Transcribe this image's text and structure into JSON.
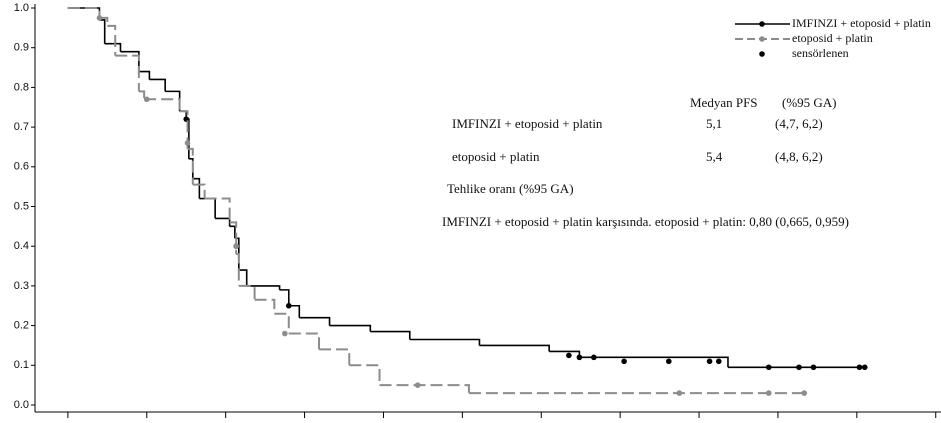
{
  "chart_data": {
    "type": "km",
    "xlim": [
      -1.25,
      33.2
    ],
    "xticks": [
      0,
      3,
      6,
      9,
      12,
      15,
      18,
      21,
      24,
      27,
      30,
      33
    ],
    "ylim": [
      0,
      1
    ],
    "yticks": [
      {
        "value": 0,
        "label": "0.0"
      },
      0.1,
      0.2,
      0.3,
      0.4,
      0.5,
      0.6,
      0.7,
      0.8,
      0.9,
      {
        "value": 1,
        "label": "1.0"
      }
    ],
    "series": [
      {
        "name": "IMFINZI + etoposid + platin",
        "color": "#000000",
        "dashed": false,
        "x": [
          0,
          1.2,
          1.4,
          2.0,
          2.7,
          3.1,
          3.7,
          4.25,
          4.5,
          4.6,
          4.75,
          5.0,
          5.6,
          6.15,
          6.35,
          6.5,
          6.8,
          8.05,
          8.4,
          8.8,
          9.95,
          11.5,
          13,
          15.65,
          18.3,
          19.45,
          25.1,
          30.4
        ],
        "values": [
          1.0,
          0.97,
          0.91,
          0.89,
          0.84,
          0.82,
          0.79,
          0.74,
          0.72,
          0.62,
          0.57,
          0.52,
          0.47,
          0.45,
          0.42,
          0.34,
          0.3,
          0.29,
          0.25,
          0.22,
          0.2,
          0.185,
          0.165,
          0.15,
          0.135,
          0.12,
          0.095,
          0.095
        ],
        "censor_x": [
          4.5,
          6.4,
          8.4,
          19.05,
          19.45,
          20,
          21.15,
          22.85,
          24.4,
          24.75,
          26.65,
          27.8,
          28.35,
          30.1,
          30.3
        ],
        "censor_values": [
          0.72,
          0.4,
          0.25,
          0.125,
          0.12,
          0.12,
          0.11,
          0.11,
          0.11,
          0.11,
          0.095,
          0.095,
          0.095,
          0.095,
          0.095
        ]
      },
      {
        "name": "etoposid + platin",
        "color": "#8c8c8c",
        "dashed": true,
        "x": [
          0,
          1.2,
          1.5,
          1.8,
          2.7,
          2.9,
          4.25,
          4.55,
          4.75,
          5.2,
          6.15,
          6.4,
          6.5,
          7.1,
          7.85,
          8.4,
          9.55,
          10.7,
          11.85,
          15.25,
          28.0
        ],
        "values": [
          1.0,
          0.975,
          0.955,
          0.88,
          0.79,
          0.77,
          0.74,
          0.645,
          0.555,
          0.52,
          0.46,
          0.38,
          0.3,
          0.265,
          0.23,
          0.18,
          0.14,
          0.1,
          0.05,
          0.03,
          0.03
        ],
        "censor_x": [
          1.2,
          3.0,
          4.55,
          6.4,
          8.25,
          13.3,
          23.25,
          26.65,
          28.0
        ],
        "censor_values": [
          0.975,
          0.77,
          0.66,
          0.4,
          0.18,
          0.05,
          0.03,
          0.03,
          0.03
        ]
      }
    ],
    "censor_label": "sensörlenen",
    "annotations": {
      "header": [
        "Medyan PFS",
        "(%95 GA)"
      ],
      "rows": [
        [
          "IMFINZI + etoposid + platin",
          "5,1",
          "(4,7, 6,2)"
        ],
        [
          "etoposid + platin",
          "5,4",
          "(4,8, 6,2)"
        ]
      ],
      "hr_title": "Tehlike oranı (%95 GA)",
      "hr_text": "IMFINZI + etoposid + platin karşısında. etoposid + platin: 0,80 (0,665, 0,959)"
    }
  }
}
